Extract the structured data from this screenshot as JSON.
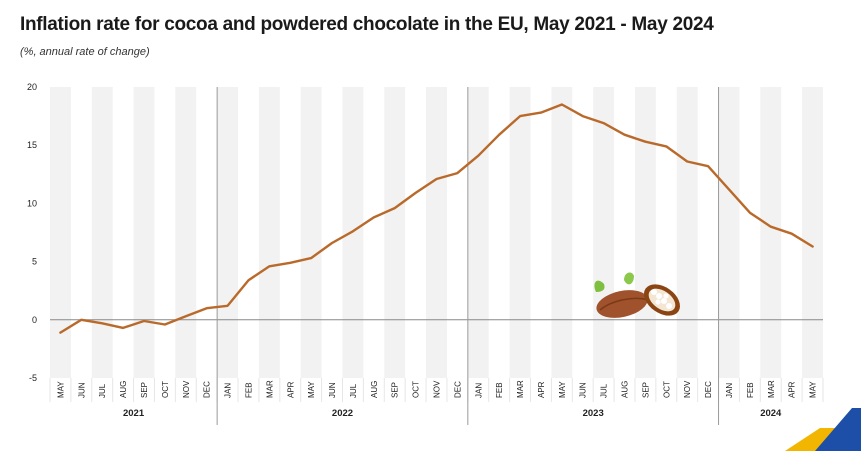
{
  "title": "Inflation rate for cocoa and powdered chocolate in the EU, May 2021 - May 2024",
  "subtitle": "(%, annual rate of change)",
  "colors": {
    "line": "#b96a2b",
    "band": "#f2f2f2",
    "axis": "#888888"
  },
  "icons": {
    "illustration": "cocoa-pod-icon",
    "logo": "eurostat-logo"
  },
  "chart_data": {
    "type": "line",
    "title": "Inflation rate for cocoa and powdered chocolate in the EU, May 2021 - May 2024",
    "subtitle": "(%, annual rate of change)",
    "ylim": [
      -5,
      20
    ],
    "yticks": [
      -5,
      0,
      5,
      10,
      15,
      20
    ],
    "grid": "alternating vertical bands",
    "legend": "none",
    "x": [
      "MAY",
      "JUN",
      "JUL",
      "AUG",
      "SEP",
      "OCT",
      "NOV",
      "DEC",
      "JAN",
      "FEB",
      "MAR",
      "APR",
      "MAY",
      "JUN",
      "JUL",
      "AUG",
      "SEP",
      "OCT",
      "NOV",
      "DEC",
      "JAN",
      "FEB",
      "MAR",
      "APR",
      "MAY",
      "JUN",
      "JUL",
      "AUG",
      "SEP",
      "OCT",
      "NOV",
      "DEC",
      "JAN",
      "FEB",
      "MAR",
      "APR",
      "MAY"
    ],
    "years": [
      {
        "label": "2021",
        "start": 0,
        "end": 7
      },
      {
        "label": "2022",
        "start": 8,
        "end": 19
      },
      {
        "label": "2023",
        "start": 20,
        "end": 31
      },
      {
        "label": "2024",
        "start": 32,
        "end": 36
      }
    ],
    "series": [
      {
        "values": [
          -1.1,
          0.0,
          -0.3,
          -0.7,
          -0.1,
          -0.4,
          0.3,
          1.0,
          1.2,
          3.4,
          4.6,
          4.9,
          5.3,
          6.6,
          7.6,
          8.8,
          9.6,
          10.9,
          12.1,
          12.6,
          14.1,
          15.9,
          17.5,
          17.8,
          18.5,
          17.5,
          16.9,
          15.9,
          15.3,
          14.9,
          13.6,
          13.2,
          11.2,
          9.2,
          8.0,
          7.4,
          6.3
        ]
      }
    ]
  }
}
